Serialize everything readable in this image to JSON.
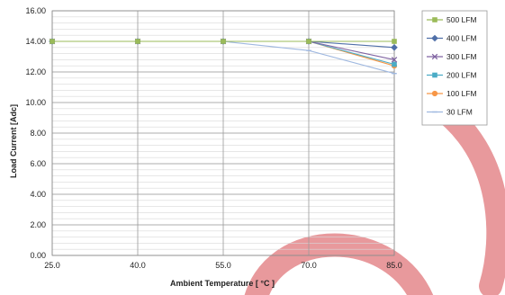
{
  "chart_data": {
    "type": "line",
    "xlabel": "Ambient Temperature [ °C ]",
    "ylabel": "Load Current [Adc]",
    "x": [
      25.0,
      40.0,
      55.0,
      70.0,
      85.0
    ],
    "x_tick_labels": [
      "25.0",
      "40.0",
      "55.0",
      "70.0",
      "85.0"
    ],
    "xlim": [
      25,
      85
    ],
    "ylim": [
      0,
      16
    ],
    "y_ticks": [
      0,
      2,
      4,
      6,
      8,
      10,
      12,
      14,
      16
    ],
    "y_tick_labels": [
      "0.00",
      "2.00",
      "4.00",
      "6.00",
      "8.00",
      "10.00",
      "12.00",
      "14.00",
      "16.00"
    ],
    "grid": true,
    "legend_position": "top-right",
    "series": [
      {
        "name": "500 LFM",
        "color": "#9bbb59",
        "marker": "square",
        "values": [
          14.0,
          14.0,
          14.0,
          14.0,
          14.0
        ]
      },
      {
        "name": "400 LFM",
        "color": "#4f6fa8",
        "marker": "diamond",
        "values": [
          14.0,
          14.0,
          14.0,
          14.0,
          13.6
        ]
      },
      {
        "name": "300 LFM",
        "color": "#8064a2",
        "marker": "x",
        "values": [
          14.0,
          14.0,
          14.0,
          14.0,
          12.8
        ]
      },
      {
        "name": "200 LFM",
        "color": "#4bacc6",
        "marker": "square",
        "values": [
          14.0,
          14.0,
          14.0,
          14.0,
          12.5
        ]
      },
      {
        "name": "100 LFM",
        "color": "#f79646",
        "marker": "circle",
        "values": [
          14.0,
          14.0,
          14.0,
          14.0,
          12.4
        ]
      },
      {
        "name": "30 LFM",
        "color": "#9fb8e0",
        "marker": "dash",
        "values": [
          14.0,
          14.0,
          14.0,
          13.4,
          11.9
        ]
      }
    ],
    "watermark_color": "#e8999c"
  }
}
